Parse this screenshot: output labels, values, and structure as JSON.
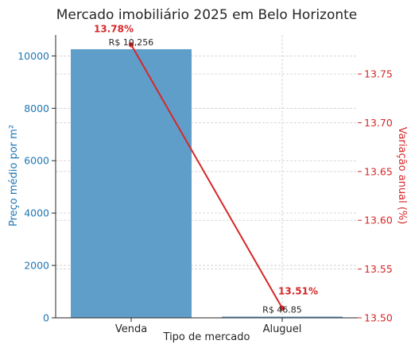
{
  "chart_data": {
    "type": "bar",
    "title": "Mercado imobiliário 2025 em Belo Horizonte",
    "xlabel": "Tipo de mercado",
    "ylabel": "Preço médio por m²",
    "y2label": "Variação anual (%)",
    "categories": [
      "Venda",
      "Aluguel"
    ],
    "bar_series": {
      "values": [
        10256,
        46.85
      ],
      "value_labels": [
        "R$ 10,256",
        "R$ 46.85"
      ],
      "color": "#5f9ec9"
    },
    "line_series": {
      "values": [
        13.78,
        13.51
      ],
      "value_labels": [
        "13.78%",
        "13.51%"
      ],
      "color": "#d62728"
    },
    "ylim": [
      0,
      10800
    ],
    "y2lim": [
      13.5,
      13.79
    ],
    "yticks": [
      "0",
      "2000",
      "4000",
      "6000",
      "8000",
      "10000"
    ],
    "y2ticks": [
      "13.50",
      "13.55",
      "13.60",
      "13.65",
      "13.70",
      "13.75"
    ],
    "grid": true,
    "colors": {
      "left_axis": "#1f77b4",
      "right_axis": "#d62728",
      "text": "#262626"
    }
  }
}
